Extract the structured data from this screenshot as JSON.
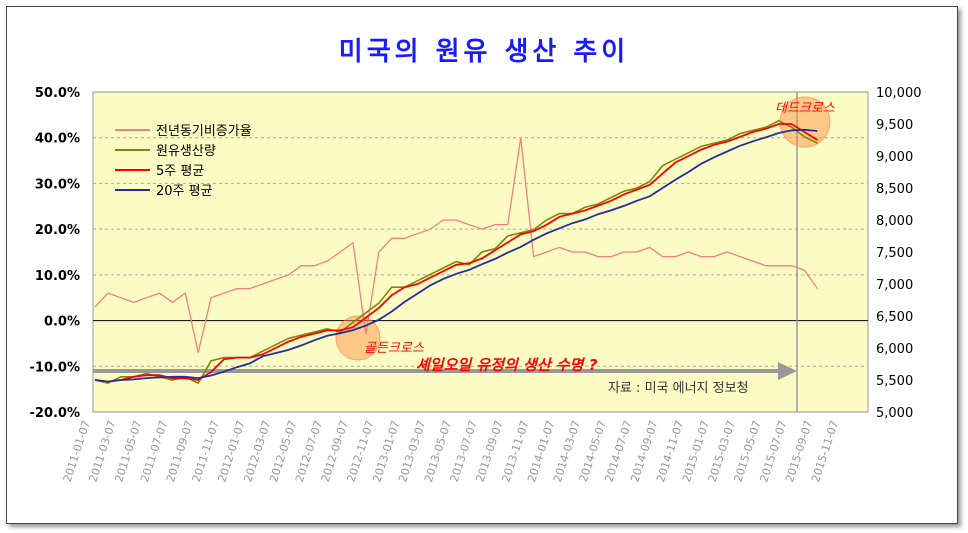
{
  "chart_data": {
    "type": "line",
    "title": "미국의 원유 생산 추이",
    "left_axis": {
      "ticks": [
        "50.0%",
        "40.0%",
        "30.0%",
        "20.0%",
        "10.0%",
        "0.0%",
        "-10.0%",
        "-20.0%"
      ],
      "range": [
        -20,
        50
      ],
      "unit": "%"
    },
    "right_axis": {
      "ticks": [
        "10,000",
        "9,500",
        "9,000",
        "8,500",
        "8,000",
        "7,500",
        "7,000",
        "6,500",
        "6,000",
        "5,500",
        "5,000"
      ],
      "range": [
        5000,
        10000
      ]
    },
    "x_ticks": [
      "2011-01-07",
      "2011-03-07",
      "2011-05-07",
      "2011-07-07",
      "2011-09-07",
      "2011-11-07",
      "2012-01-07",
      "2012-03-07",
      "2012-05-07",
      "2012-07-07",
      "2012-09-07",
      "2012-11-07",
      "2013-01-07",
      "2013-03-07",
      "2013-05-07",
      "2013-07-07",
      "2013-09-07",
      "2013-11-07",
      "2014-01-07",
      "2014-03-07",
      "2014-05-07",
      "2014-07-07",
      "2014-09-07",
      "2014-11-07",
      "2015-01-07",
      "2015-03-07",
      "2015-05-07",
      "2015-07-07",
      "2015-09-07",
      "2015-11-07"
    ],
    "x_start": "2011-01",
    "x_step": "month",
    "legend": {
      "placement": "top-left",
      "items": [
        "전년동기비증가율",
        "원유생산량",
        "5주 평균",
        "20주 평균"
      ]
    },
    "series": [
      {
        "name": "전년동기비증가율",
        "axis": "left",
        "color": "#f08080",
        "values": [
          3,
          6,
          5,
          4,
          5,
          6,
          4,
          6,
          -7,
          5,
          6,
          7,
          7,
          8,
          9,
          10,
          12,
          12,
          13,
          15,
          17,
          -3,
          15,
          18,
          18,
          19,
          20,
          22,
          22,
          21,
          20,
          21,
          21,
          40,
          14,
          15,
          16,
          15,
          15,
          14,
          14,
          15,
          15,
          16,
          14,
          14,
          15,
          14,
          14,
          15,
          14,
          13,
          12,
          12,
          12,
          11,
          7
        ]
      },
      {
        "name": "원유생산량",
        "axis": "right",
        "color": "#7a8a00",
        "values": [
          5500,
          5450,
          5550,
          5550,
          5600,
          5550,
          5500,
          5550,
          5450,
          5800,
          5850,
          5850,
          5850,
          5950,
          6050,
          6150,
          6200,
          6250,
          6300,
          6250,
          6400,
          6550,
          6700,
          6950,
          6950,
          7050,
          7150,
          7250,
          7350,
          7300,
          7500,
          7550,
          7750,
          7800,
          7850,
          8000,
          8100,
          8100,
          8200,
          8250,
          8350,
          8450,
          8500,
          8600,
          8850,
          8950,
          9050,
          9150,
          9200,
          9250,
          9350,
          9400,
          9450,
          9550,
          9450,
          9300,
          9200
        ]
      },
      {
        "name": "5주 평균",
        "axis": "right",
        "color": "#ff0000",
        "values": [
          5500,
          5475,
          5500,
          5550,
          5575,
          5575,
          5525,
          5525,
          5500,
          5625,
          5825,
          5850,
          5850,
          5900,
          6000,
          6100,
          6175,
          6225,
          6275,
          6275,
          6325,
          6475,
          6625,
          6825,
          6950,
          7000,
          7100,
          7200,
          7300,
          7325,
          7400,
          7525,
          7650,
          7775,
          7825,
          7925,
          8050,
          8100,
          8150,
          8225,
          8300,
          8400,
          8475,
          8550,
          8725,
          8900,
          9000,
          9100,
          9175,
          9225,
          9300,
          9375,
          9425,
          9500,
          9500,
          9375,
          9250
        ]
      },
      {
        "name": "20주 평균",
        "axis": "right",
        "color": "#2030a0",
        "values": [
          5500,
          5475,
          5500,
          5510,
          5530,
          5540,
          5550,
          5550,
          5530,
          5570,
          5630,
          5700,
          5760,
          5870,
          5920,
          5970,
          6040,
          6120,
          6190,
          6230,
          6280,
          6350,
          6440,
          6570,
          6720,
          6850,
          6980,
          7080,
          7160,
          7220,
          7310,
          7390,
          7490,
          7580,
          7690,
          7790,
          7870,
          7950,
          8010,
          8090,
          8150,
          8220,
          8300,
          8370,
          8500,
          8630,
          8750,
          8880,
          8980,
          9070,
          9160,
          9230,
          9290,
          9360,
          9400,
          9410,
          9390
        ]
      }
    ],
    "annotations": {
      "dead_cross": "데드크로스",
      "golden_cross": "골든크로스",
      "question": "셰일오일 유정의 생산 수명 ?",
      "source": "자료 : 미국 에너지 정보청"
    },
    "grid": true
  }
}
